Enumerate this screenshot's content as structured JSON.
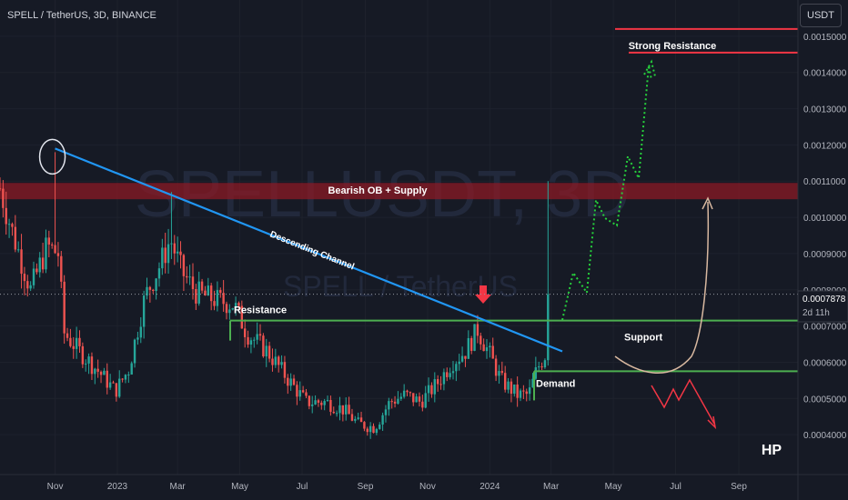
{
  "header": {
    "symbol_title": "SPELL / TetherUS, 3D, BINANCE",
    "currency_button": "USDT"
  },
  "watermark": {
    "ticker": "SPELLUSDT, 3D",
    "pair": "SPELL / TetherUS"
  },
  "price_label": {
    "value": "0.0007878",
    "countdown": "2d 11h"
  },
  "signature": "HP",
  "chart_data": {
    "type": "candlestick",
    "title": "SPELL / TetherUS, 3D, BINANCE",
    "y_axis": {
      "ticks": [
        "0.0015000",
        "0.0014000",
        "0.0013000",
        "0.0012000",
        "0.0011000",
        "0.0010000",
        "0.0009000",
        "0.0008000",
        "0.0007000",
        "0.0006000",
        "0.0005000",
        "0.0004000"
      ],
      "ylim": [
        0.00032,
        0.00157
      ]
    },
    "x_axis": {
      "ticks": [
        "Nov",
        "2023",
        "Mar",
        "May",
        "Jul",
        "Sep",
        "Nov",
        "2024",
        "Mar",
        "May",
        "Jul",
        "Sep"
      ],
      "tick_dates": [
        "2022-11-01",
        "2023-01-01",
        "2023-03-01",
        "2023-05-01",
        "2023-07-01",
        "2023-09-01",
        "2023-11-01",
        "2024-01-01",
        "2024-03-01",
        "2024-05-01",
        "2024-07-01",
        "2024-09-01"
      ],
      "range": [
        "2022-09-08",
        "2024-10-20"
      ]
    },
    "price_keypoints": [
      [
        "2022-09-08",
        0.00108
      ],
      [
        "2022-09-20",
        0.00096
      ],
      [
        "2022-10-08",
        0.0008
      ],
      [
        "2022-10-24",
        0.00092
      ],
      [
        "2022-11-04",
        0.0009
      ],
      [
        "2022-11-10",
        0.00068
      ],
      [
        "2022-11-25",
        0.00063
      ],
      [
        "2022-12-15",
        0.00057
      ],
      [
        "2022-12-30",
        0.00052
      ],
      [
        "2023-01-12",
        0.00058
      ],
      [
        "2023-01-28",
        0.00078
      ],
      [
        "2023-02-12",
        0.00087
      ],
      [
        "2023-02-22",
        0.00094
      ],
      [
        "2023-03-05",
        0.00085
      ],
      [
        "2023-03-20",
        0.00079
      ],
      [
        "2023-04-10",
        0.00077
      ],
      [
        "2023-04-25",
        0.00076
      ],
      [
        "2023-05-08",
        0.00068
      ],
      [
        "2023-05-28",
        0.00063
      ],
      [
        "2023-06-18",
        0.00055
      ],
      [
        "2023-07-05",
        0.00049
      ],
      [
        "2023-07-25",
        0.00049
      ],
      [
        "2023-08-10",
        0.00047
      ],
      [
        "2023-08-25",
        0.00043
      ],
      [
        "2023-09-10",
        0.00042
      ],
      [
        "2023-09-25",
        0.00049
      ],
      [
        "2023-10-10",
        0.00051
      ],
      [
        "2023-10-25",
        0.00049
      ],
      [
        "2023-11-10",
        0.00054
      ],
      [
        "2023-11-25",
        0.0006
      ],
      [
        "2023-12-08",
        0.00063
      ],
      [
        "2023-12-20",
        0.00069
      ],
      [
        "2024-01-01",
        0.00062
      ],
      [
        "2024-01-12",
        0.00055
      ],
      [
        "2024-01-28",
        0.00051
      ],
      [
        "2024-02-08",
        0.00051
      ],
      [
        "2024-02-16",
        0.00058
      ],
      [
        "2024-02-24",
        0.00062
      ],
      [
        "2024-02-28",
        0.00079
      ]
    ],
    "spikes": [
      {
        "date": "2022-11-01",
        "high": 0.00118
      },
      {
        "date": "2023-02-22",
        "high": 0.00107
      },
      {
        "date": "2023-12-20",
        "high": 0.00073
      },
      {
        "date": "2024-02-28",
        "high": 0.0011
      }
    ],
    "last_price": 0.0007878,
    "levels": [
      {
        "name": "Strong Resistance",
        "value": 0.00152,
        "color": "#f23645"
      },
      {
        "name": "Strong Resistance",
        "value": 0.001455,
        "color": "#f23645"
      },
      {
        "name": "Resistance",
        "value": 0.000715,
        "color": "#4caf50"
      },
      {
        "name": "Demand",
        "value": 0.000575,
        "color": "#4caf50"
      }
    ],
    "zone": {
      "name": "Bearish OB + Supply",
      "from": 0.00105,
      "to": 0.001095,
      "color": "#8b1a24"
    },
    "trendline": {
      "name": "Descending Channel",
      "from": [
        "2022-11-01",
        0.00119
      ],
      "to": [
        "2024-03-12",
        0.00063
      ],
      "color": "#2196f3"
    },
    "annotations": [
      "Strong Resistance",
      "Bearish OB + Supply",
      "Descending Channel",
      "Resistance",
      "Support",
      "Demand"
    ],
    "colors": {
      "up": "#26a69a",
      "down": "#ef5350",
      "background": "#161a25"
    }
  }
}
